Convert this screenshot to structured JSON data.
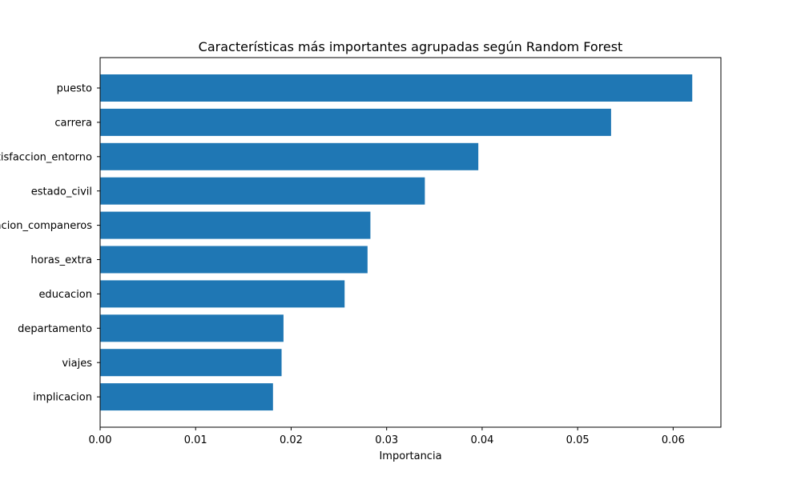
{
  "chart_data": {
    "type": "bar",
    "orientation": "horizontal",
    "title": "Características más importantes agrupadas según Random Forest",
    "xlabel": "Importancia",
    "ylabel": "",
    "xlim": [
      0.0,
      0.065
    ],
    "xticks": [
      "0.00",
      "0.01",
      "0.02",
      "0.03",
      "0.04",
      "0.05",
      "0.06"
    ],
    "categories": [
      "puesto",
      "carrera",
      "satisfaccion_entorno",
      "estado_civil",
      "relacion_companeros",
      "horas_extra",
      "educacion",
      "departamento",
      "viajes",
      "implicacion"
    ],
    "values": [
      0.062,
      0.0535,
      0.0396,
      0.034,
      0.0283,
      0.028,
      0.0256,
      0.0192,
      0.019,
      0.0181
    ],
    "bar_color": "#1f77b4",
    "grid": false,
    "legend": "none"
  }
}
